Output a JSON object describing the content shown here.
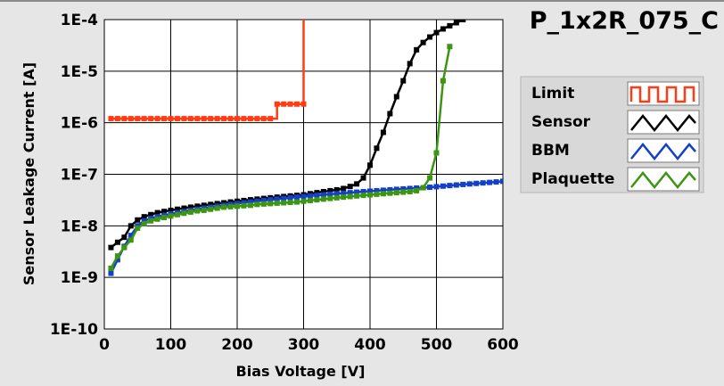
{
  "chart_data": {
    "type": "line",
    "title": "P_1x2R_075_C",
    "xlabel": "Bias Voltage [V]",
    "ylabel": "Sensor Leakage Current [A]",
    "xlim": [
      0,
      600
    ],
    "ylim": [
      1e-10,
      0.0001
    ],
    "yscale": "log",
    "grid": true,
    "legend_position": "right",
    "x_ticks": [
      0,
      100,
      200,
      300,
      400,
      500,
      600
    ],
    "x_tick_labels": [
      "0",
      "100",
      "200",
      "300",
      "400",
      "500",
      "600"
    ],
    "y_ticks": [
      0.0001,
      1e-05,
      1e-06,
      1e-07,
      1e-08,
      1e-09,
      1e-10
    ],
    "y_tick_labels": [
      "1E-4",
      "1E-5",
      "1E-6",
      "1E-7",
      "1E-8",
      "1E-9",
      "1E-10"
    ],
    "series": [
      {
        "name": "Limit",
        "color": "#ff3c14",
        "step": true,
        "x": [
          10,
          20,
          30,
          40,
          50,
          60,
          70,
          80,
          90,
          100,
          110,
          120,
          130,
          140,
          150,
          160,
          170,
          180,
          190,
          200,
          210,
          220,
          230,
          240,
          250,
          260,
          270,
          280,
          290,
          300
        ],
        "y": [
          1.2e-06,
          1.2e-06,
          1.2e-06,
          1.2e-06,
          1.2e-06,
          1.2e-06,
          1.2e-06,
          1.2e-06,
          1.2e-06,
          1.2e-06,
          1.2e-06,
          1.2e-06,
          1.2e-06,
          1.2e-06,
          1.2e-06,
          1.2e-06,
          1.2e-06,
          1.2e-06,
          1.2e-06,
          1.2e-06,
          1.2e-06,
          1.2e-06,
          1.2e-06,
          1.2e-06,
          1.2e-06,
          2.3e-06,
          2.3e-06,
          2.3e-06,
          2.3e-06,
          2.3e-06
        ]
      },
      {
        "name": "Sensor",
        "color": "#000000",
        "x": [
          10,
          20,
          30,
          40,
          50,
          60,
          70,
          80,
          90,
          100,
          110,
          120,
          130,
          140,
          150,
          160,
          170,
          180,
          190,
          200,
          210,
          220,
          230,
          240,
          250,
          260,
          270,
          280,
          290,
          300,
          310,
          320,
          330,
          340,
          350,
          360,
          370,
          380,
          390,
          400,
          410,
          420,
          430,
          440,
          450,
          460,
          470,
          480,
          490,
          500,
          510,
          520,
          530,
          540
        ],
        "y": [
          3.8e-09,
          4.8e-09,
          6e-09,
          1e-08,
          1.3e-08,
          1.5e-08,
          1.65e-08,
          1.8e-08,
          1.9e-08,
          2e-08,
          2.1e-08,
          2.2e-08,
          2.3e-08,
          2.4e-08,
          2.5e-08,
          2.6e-08,
          2.7e-08,
          2.8e-08,
          2.9e-08,
          3e-08,
          3.1e-08,
          3.2e-08,
          3.3e-08,
          3.4e-08,
          3.5e-08,
          3.6e-08,
          3.7e-08,
          3.8e-08,
          3.9e-08,
          4e-08,
          4.2e-08,
          4.4e-08,
          4.6e-08,
          4.8e-08,
          5e-08,
          5.3e-08,
          5.8e-08,
          6.5e-08,
          8.5e-08,
          1.5e-07,
          3.2e-07,
          6.5e-07,
          1.5e-06,
          3.2e-06,
          6.5e-06,
          1.4e-05,
          2.6e-05,
          3.6e-05,
          4.6e-05,
          5.6e-05,
          6.6e-05,
          7.6e-05,
          8.7e-05,
          0.0001
        ]
      },
      {
        "name": "BBM",
        "color": "#1440c8",
        "x": [
          10,
          20,
          30,
          40,
          50,
          60,
          70,
          80,
          90,
          100,
          110,
          120,
          130,
          140,
          150,
          160,
          170,
          180,
          190,
          200,
          210,
          220,
          230,
          240,
          250,
          260,
          270,
          280,
          290,
          300,
          310,
          320,
          330,
          340,
          350,
          360,
          370,
          380,
          390,
          400,
          410,
          420,
          430,
          440,
          450,
          460,
          470,
          480,
          490,
          500,
          510,
          520,
          530,
          540,
          550,
          560,
          570,
          580,
          590,
          600
        ],
        "y": [
          1.2e-09,
          2.2e-09,
          4e-09,
          6.5e-09,
          1e-08,
          1.25e-08,
          1.4e-08,
          1.5e-08,
          1.6e-08,
          1.7e-08,
          1.8e-08,
          1.9e-08,
          2e-08,
          2.1e-08,
          2.2e-08,
          2.3e-08,
          2.4e-08,
          2.5e-08,
          2.6e-08,
          2.7e-08,
          2.8e-08,
          2.9e-08,
          3e-08,
          3.1e-08,
          3.2e-08,
          3.3e-08,
          3.4e-08,
          3.5e-08,
          3.6e-08,
          3.7e-08,
          3.8e-08,
          3.9e-08,
          4e-08,
          4.1e-08,
          4.2e-08,
          4.3e-08,
          4.4e-08,
          4.5e-08,
          4.6e-08,
          4.7e-08,
          4.8e-08,
          4.9e-08,
          5e-08,
          5.1e-08,
          5.2e-08,
          5.3e-08,
          5.4e-08,
          5.5e-08,
          5.6e-08,
          5.75e-08,
          5.9e-08,
          6.05e-08,
          6.2e-08,
          6.35e-08,
          6.5e-08,
          6.65e-08,
          6.8e-08,
          6.95e-08,
          7.1e-08,
          7.3e-08
        ]
      },
      {
        "name": "Plaquette",
        "color": "#3c9614",
        "x": [
          10,
          20,
          30,
          40,
          50,
          60,
          70,
          80,
          90,
          100,
          110,
          120,
          130,
          140,
          150,
          160,
          170,
          180,
          190,
          200,
          210,
          220,
          230,
          240,
          250,
          260,
          270,
          280,
          290,
          300,
          310,
          320,
          330,
          340,
          350,
          360,
          370,
          380,
          390,
          400,
          410,
          420,
          430,
          440,
          450,
          460,
          470,
          480,
          490,
          500,
          510,
          520
        ],
        "y": [
          1.5e-09,
          2.6e-09,
          3.8e-09,
          5.3e-09,
          9e-09,
          1.1e-08,
          1.25e-08,
          1.35e-08,
          1.45e-08,
          1.55e-08,
          1.65e-08,
          1.75e-08,
          1.85e-08,
          1.95e-08,
          2e-08,
          2.1e-08,
          2.2e-08,
          2.3e-08,
          2.35e-08,
          2.4e-08,
          2.45e-08,
          2.5e-08,
          2.6e-08,
          2.65e-08,
          2.7e-08,
          2.75e-08,
          2.8e-08,
          2.85e-08,
          2.9e-08,
          3e-08,
          3.1e-08,
          3.2e-08,
          3.3e-08,
          3.4e-08,
          3.5e-08,
          3.6e-08,
          3.7e-08,
          3.8e-08,
          3.9e-08,
          4e-08,
          4.1e-08,
          4.2e-08,
          4.3e-08,
          4.4e-08,
          4.5e-08,
          4.6e-08,
          4.8e-08,
          5.5e-08,
          8.5e-08,
          2.6e-07,
          6.5e-06,
          3e-05
        ]
      }
    ]
  }
}
